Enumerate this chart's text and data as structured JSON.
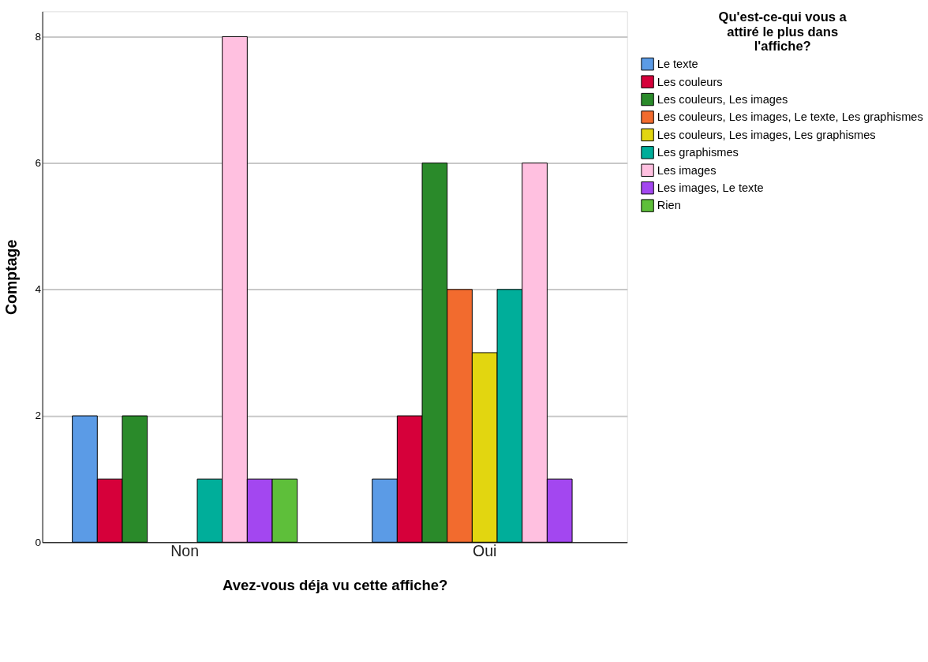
{
  "chart_data": {
    "type": "bar",
    "xlabel": "Avez-vous déja vu cette affiche?",
    "ylabel": "Comptage",
    "legend_title": "Qu'est-ce-qui vous a attiré le plus dans l'affiche?",
    "categories": [
      "Non",
      "Oui"
    ],
    "series": [
      {
        "name": "Le texte",
        "color": "#5b9be6",
        "values": [
          2,
          1
        ]
      },
      {
        "name": "Les couleurs",
        "color": "#d6003a",
        "values": [
          1,
          2
        ]
      },
      {
        "name": "Les couleurs, Les images",
        "color": "#2a8a2a",
        "values": [
          2,
          6
        ]
      },
      {
        "name": "Les couleurs, Les images, Le texte, Les graphismes",
        "color": "#f26b2e",
        "values": [
          null,
          4
        ]
      },
      {
        "name": "Les couleurs, Les images, Les graphismes",
        "color": "#e2d610",
        "values": [
          null,
          3
        ]
      },
      {
        "name": "Les graphismes",
        "color": "#00ae9a",
        "values": [
          1,
          4
        ]
      },
      {
        "name": "Les images",
        "color": "#ffc0e0",
        "values": [
          8,
          6
        ]
      },
      {
        "name": "Les images, Le texte",
        "color": "#a347f0",
        "values": [
          1,
          1
        ]
      },
      {
        "name": "Rien",
        "color": "#5ebf3a",
        "values": [
          1,
          null
        ]
      }
    ],
    "ylim": [
      0,
      8.4
    ],
    "yticks": [
      0,
      2,
      4,
      6,
      8
    ],
    "grid": "y",
    "legend": "top right"
  }
}
